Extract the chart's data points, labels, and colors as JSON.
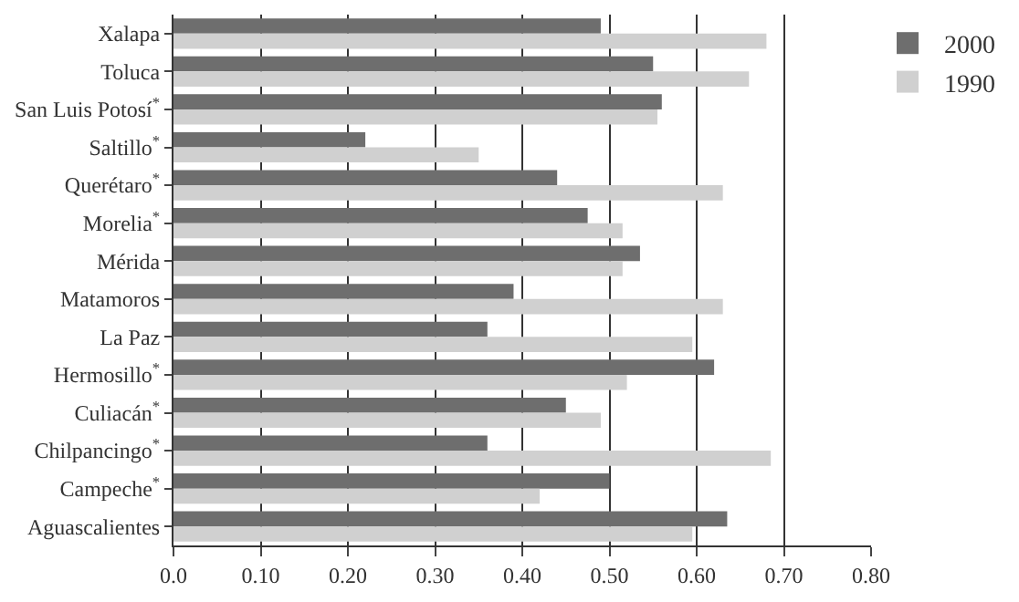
{
  "chart_data": {
    "type": "bar",
    "orientation": "horizontal",
    "categories": [
      "Xalapa",
      "Toluca",
      "San Luis Potosí$^{*}$",
      "Saltillo$^{*}$",
      "Querétaro$^{*}$",
      "Morelia$^{*}$",
      "Mérida",
      "Matamoros",
      "La Paz",
      "Hermosillo$^{*}$",
      "Culiacán$^{*}$",
      "Chilpancingo$^{*}$",
      "Campeche$^{*}$",
      "Aguascalientes"
    ],
    "series": [
      {
        "name": "2000",
        "color": "#6e6e6e",
        "values": [
          0.49,
          0.55,
          0.56,
          0.22,
          0.44,
          0.475,
          0.535,
          0.39,
          0.36,
          0.62,
          0.45,
          0.36,
          0.5,
          0.635
        ]
      },
      {
        "name": "1990",
        "color": "#d0d0d0",
        "values": [
          0.68,
          0.66,
          0.555,
          0.35,
          0.63,
          0.515,
          0.515,
          0.63,
          0.595,
          0.52,
          0.49,
          0.685,
          0.42,
          0.595
        ]
      }
    ],
    "xlim": [
      0,
      0.8
    ],
    "xticks": [
      {
        "value": 0,
        "label": "0.0"
      },
      {
        "value": 0.1,
        "label": "0.10"
      },
      {
        "value": 0.2,
        "label": "0.20"
      },
      {
        "value": 0.3,
        "label": "0.30"
      },
      {
        "value": 0.4,
        "label": "0.40"
      },
      {
        "value": 0.5,
        "label": "0.50"
      },
      {
        "value": 0.6,
        "label": "0.60"
      },
      {
        "value": 0.7,
        "label": "0.70"
      },
      {
        "value": 0.8,
        "label": "0.80"
      }
    ],
    "grid": "x",
    "legend": "top right"
  }
}
